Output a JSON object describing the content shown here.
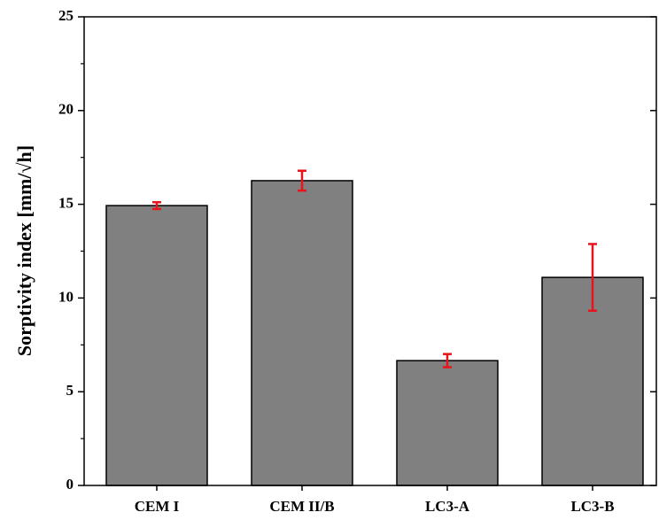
{
  "chart_data": {
    "type": "bar",
    "y_label": "Sorptivity index [mm/√h]",
    "categories": [
      "CEM I",
      "CEM II/B",
      "LC3-A",
      "LC3-B"
    ],
    "values": [
      14.93,
      16.26,
      6.66,
      11.1
    ],
    "errors": [
      0.18,
      0.53,
      0.35,
      1.78
    ],
    "color": "#808080",
    "error_color": "#e8141b",
    "ylim": [
      0,
      25
    ],
    "yticks": [
      0,
      5,
      10,
      15,
      20,
      25
    ],
    "yminorticks": [
      2.5,
      7.5,
      12.5,
      17.5,
      22.5
    ]
  }
}
